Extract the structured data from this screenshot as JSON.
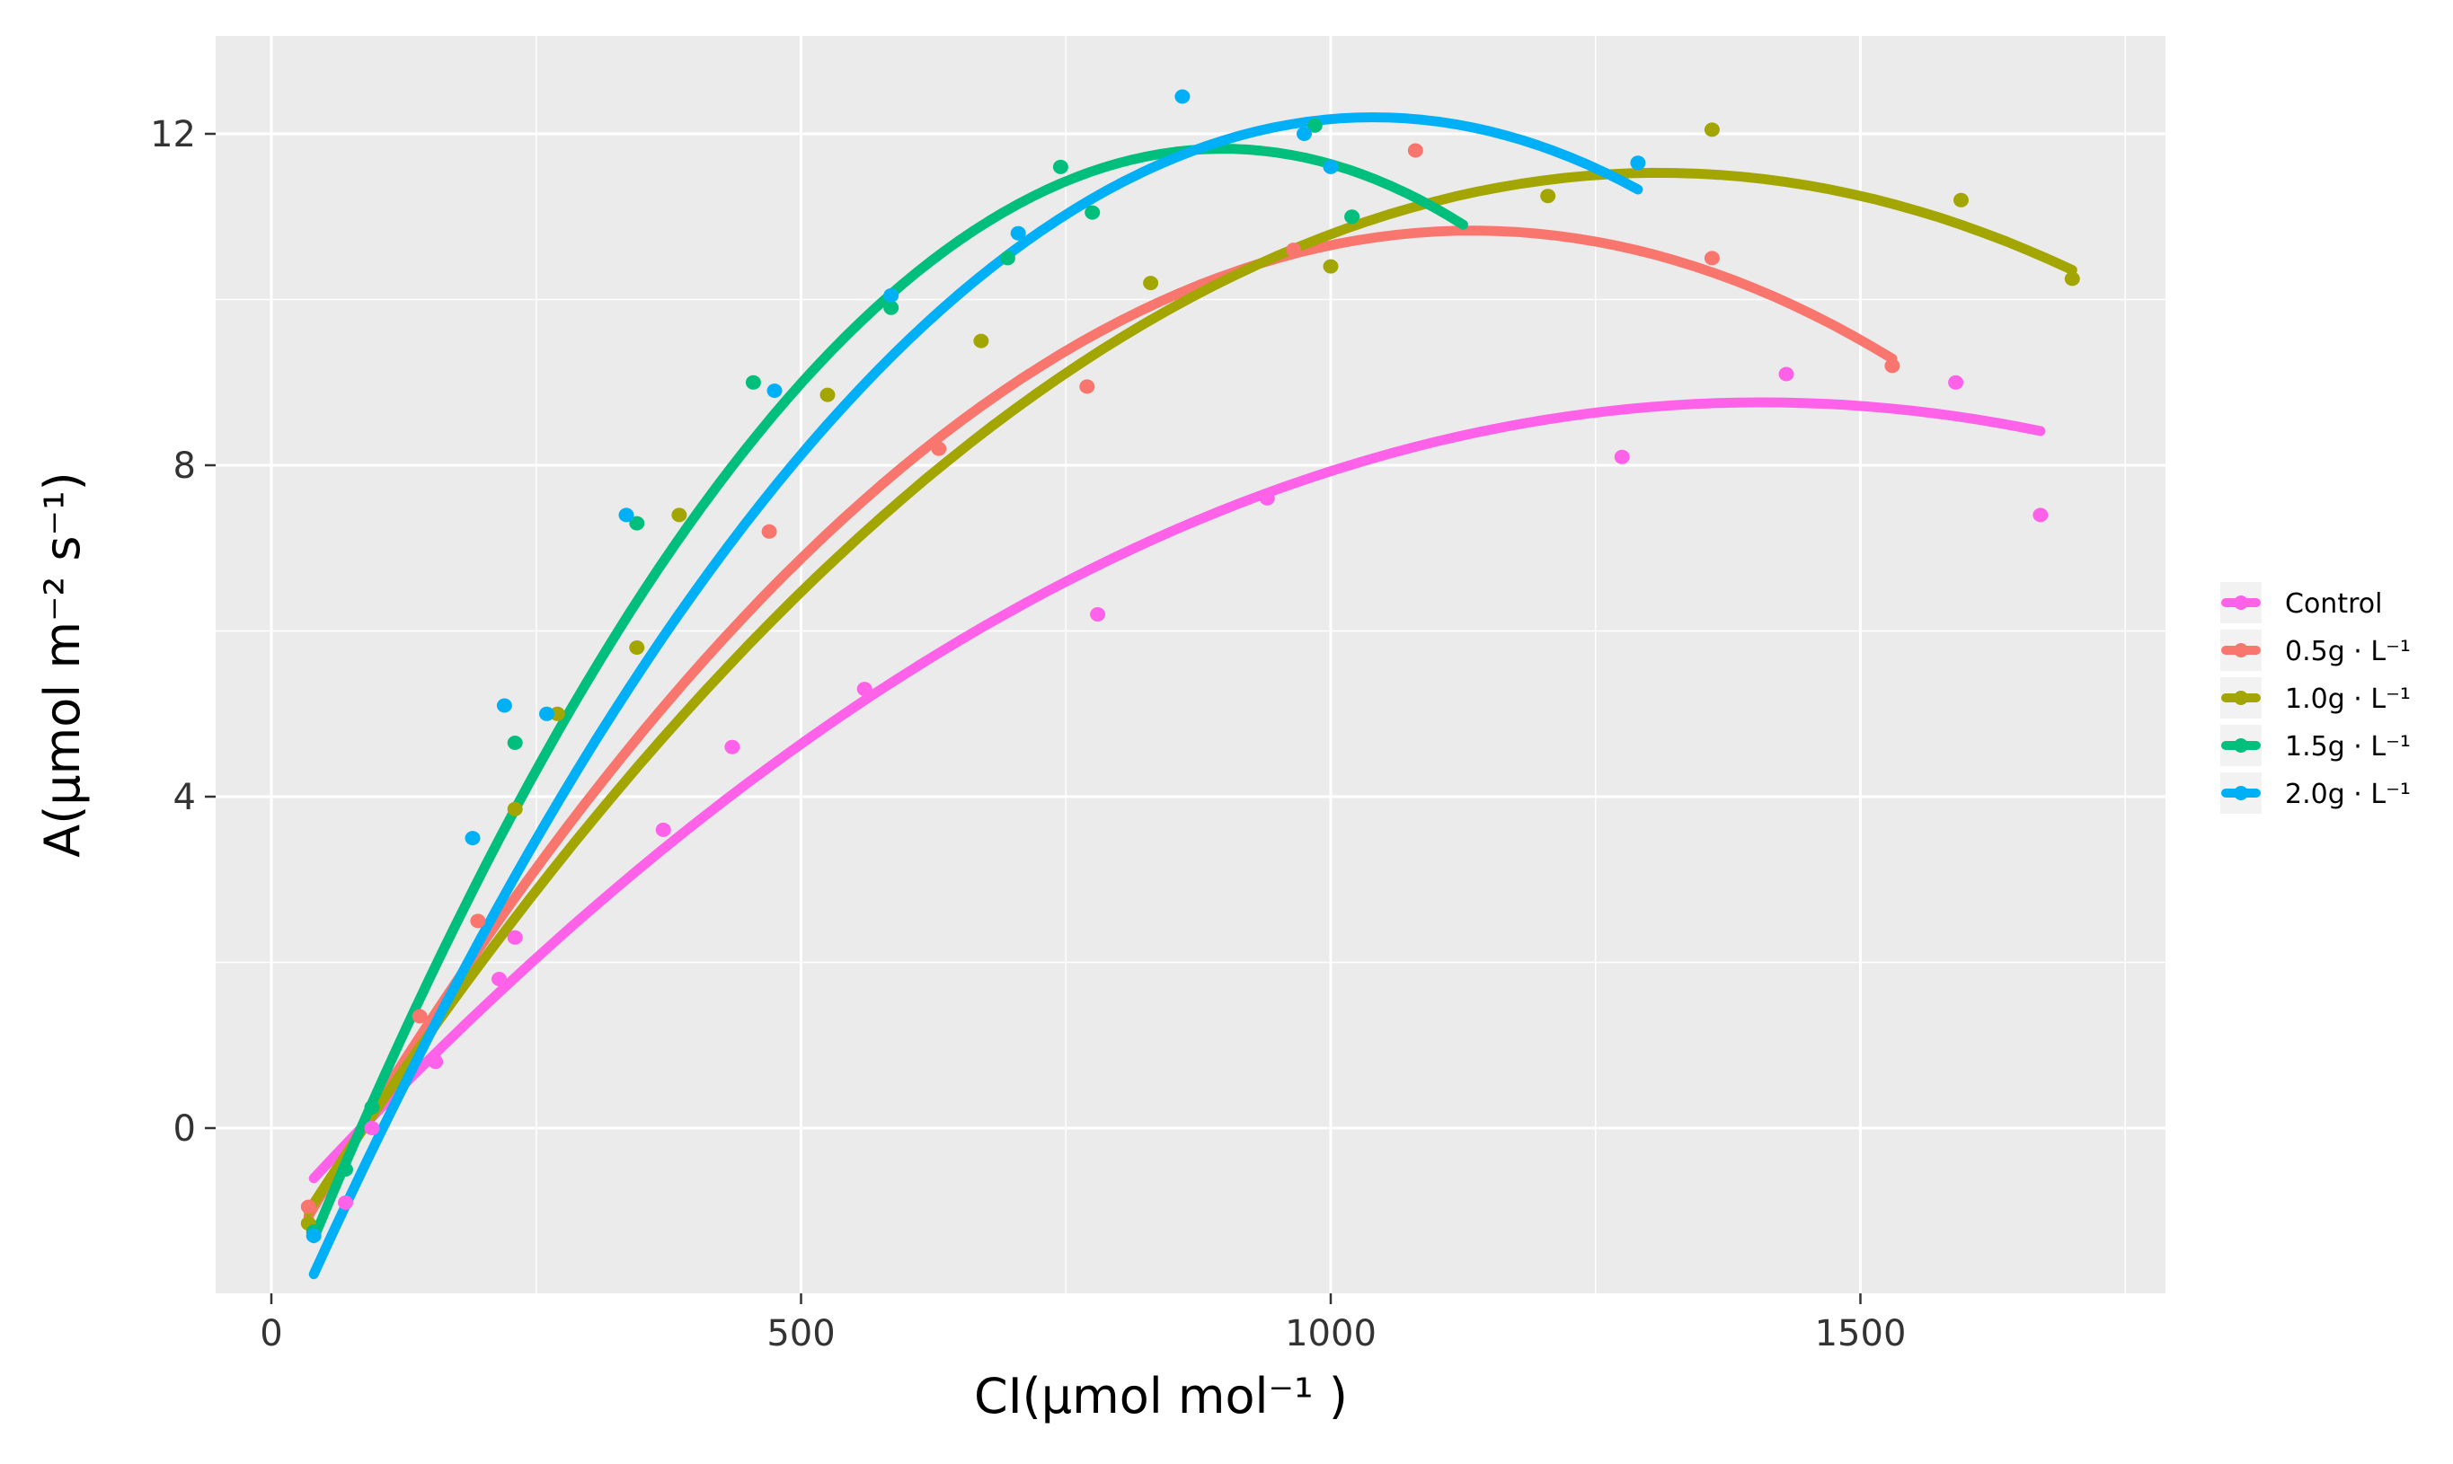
{
  "chart_data": {
    "type": "scatter",
    "title": "",
    "xlabel": "CI(μmol mol⁻¹ )",
    "ylabel": "A(μmol m⁻² s⁻¹)",
    "xlim": [
      -50,
      1780
    ],
    "ylim": [
      -1.9,
      13.2
    ],
    "x_ticks": [
      0,
      500,
      1000,
      1500
    ],
    "x_tick_labels": [
      "0",
      "500",
      "1000",
      "1500"
    ],
    "y_ticks": [
      0,
      4,
      8,
      12
    ],
    "y_tick_labels": [
      "0",
      "4",
      "8",
      "12"
    ],
    "grid": true,
    "legend_position": "right",
    "panel_background": "#ebebeb",
    "grid_color": "#ffffff",
    "fit": "smooth polynomial trend line per series",
    "series": [
      {
        "name": "Control",
        "color": "#ff61e9",
        "points": [
          [
            70,
            -0.9
          ],
          [
            95,
            0.0
          ],
          [
            155,
            0.8
          ],
          [
            215,
            1.8
          ],
          [
            230,
            2.3
          ],
          [
            370,
            3.6
          ],
          [
            435,
            4.6
          ],
          [
            560,
            5.3
          ],
          [
            780,
            6.2
          ],
          [
            940,
            7.6
          ],
          [
            1275,
            8.1
          ],
          [
            1430,
            9.1
          ],
          [
            1590,
            9.0
          ],
          [
            1670,
            7.4
          ]
        ],
        "fit_x": [
          40,
          1670
        ],
        "fit_coef": [
          -1.1617,
          0.0141,
          -5.01e-06
        ]
      },
      {
        "name": "0.5g · L⁻¹",
        "color": "#f8766d",
        "points": [
          [
            35,
            -0.95
          ],
          [
            140,
            1.35
          ],
          [
            195,
            2.5
          ],
          [
            470,
            7.2
          ],
          [
            630,
            8.2
          ],
          [
            770,
            8.95
          ],
          [
            965,
            10.6
          ],
          [
            1080,
            11.8
          ],
          [
            1360,
            10.5
          ],
          [
            1530,
            9.2
          ]
        ],
        "fit_x": [
          35,
          1530
        ],
        "fit_coef": [
          -1.8346,
          0.02234,
          -9.85e-06
        ]
      },
      {
        "name": "1.0g · L⁻¹",
        "color": "#a3a500",
        "points": [
          [
            35,
            -1.15
          ],
          [
            230,
            3.85
          ],
          [
            270,
            5.0
          ],
          [
            345,
            5.8
          ],
          [
            385,
            7.4
          ],
          [
            525,
            8.85
          ],
          [
            670,
            9.5
          ],
          [
            830,
            10.2
          ],
          [
            1000,
            10.4
          ],
          [
            1205,
            11.25
          ],
          [
            1360,
            12.05
          ],
          [
            1595,
            11.2
          ],
          [
            1700,
            10.25
          ]
        ],
        "fit_x": [
          35,
          1700
        ],
        "fit_coef": [
          -1.7016,
          0.0202,
          -7.71e-06
        ]
      },
      {
        "name": "1.5g · L⁻¹",
        "color": "#00bf7d",
        "points": [
          [
            40,
            -1.25
          ],
          [
            70,
            -0.5
          ],
          [
            95,
            0.25
          ],
          [
            230,
            4.65
          ],
          [
            345,
            7.3
          ],
          [
            455,
            9.0
          ],
          [
            585,
            9.9
          ],
          [
            695,
            10.5
          ],
          [
            745,
            11.6
          ],
          [
            775,
            11.05
          ],
          [
            985,
            12.1
          ],
          [
            1020,
            11.0
          ]
        ],
        "fit_x": [
          40,
          1125
        ],
        "fit_coef": [
          -2.5848,
          0.03207,
          -1.785e-05
        ]
      },
      {
        "name": "2.0g · L⁻¹",
        "color": "#00b0f6",
        "points": [
          [
            40,
            -1.3
          ],
          [
            190,
            3.5
          ],
          [
            220,
            5.1
          ],
          [
            260,
            5.0
          ],
          [
            335,
            7.4
          ],
          [
            475,
            8.9
          ],
          [
            585,
            10.05
          ],
          [
            705,
            10.8
          ],
          [
            860,
            12.45
          ],
          [
            975,
            12.0
          ],
          [
            1000,
            11.6
          ],
          [
            1290,
            11.65
          ]
        ],
        "fit_x": [
          40,
          1290
        ],
        "fit_coef": [
          -2.9027,
          0.02904,
          -1.396e-05
        ]
      }
    ]
  }
}
